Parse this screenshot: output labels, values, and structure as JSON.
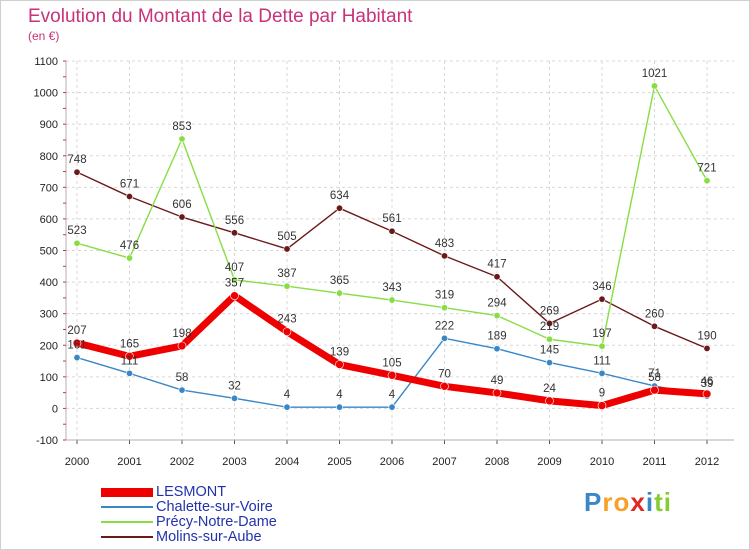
{
  "chart_data": {
    "type": "line",
    "title": "Evolution du Montant de la Dette par Habitant",
    "subtitle": "(en €)",
    "categories": [
      "2000",
      "2001",
      "2002",
      "2003",
      "2004",
      "2005",
      "2006",
      "2007",
      "2008",
      "2009",
      "2010",
      "2011",
      "2012"
    ],
    "ylim": [
      -100,
      1100
    ],
    "yticks": [
      -100,
      0,
      100,
      200,
      300,
      400,
      500,
      600,
      700,
      800,
      900,
      1000,
      1100
    ],
    "grid": true,
    "legend_position": "bottom-left",
    "series": [
      {
        "name": "LESMONT",
        "color": "#ee0000",
        "values": [
          207,
          165,
          198,
          357,
          243,
          139,
          105,
          70,
          49,
          24,
          9,
          58,
          46
        ]
      },
      {
        "name": "Chalette-sur-Voire",
        "color": "#3a87c8",
        "values": [
          161,
          111,
          58,
          32,
          4,
          4,
          4,
          222,
          189,
          145,
          111,
          71,
          39
        ]
      },
      {
        "name": "Précy-Notre-Dame",
        "color": "#88dd44",
        "values": [
          523,
          476,
          853,
          407,
          387,
          365,
          343,
          319,
          294,
          219,
          197,
          1021,
          721
        ]
      },
      {
        "name": "Molins-sur-Aube",
        "color": "#6b1a1a",
        "values": [
          748,
          671,
          606,
          556,
          505,
          634,
          561,
          483,
          417,
          269,
          346,
          260,
          190
        ]
      }
    ]
  },
  "logo": {
    "letters": [
      "P",
      "r",
      "o",
      "x",
      "i",
      "t",
      "i"
    ],
    "colors": [
      "#3a87c8",
      "#f7a12a",
      "#f7a12a",
      "#e02525",
      "#3a87c8",
      "#88cc33",
      "#88cc33"
    ]
  }
}
